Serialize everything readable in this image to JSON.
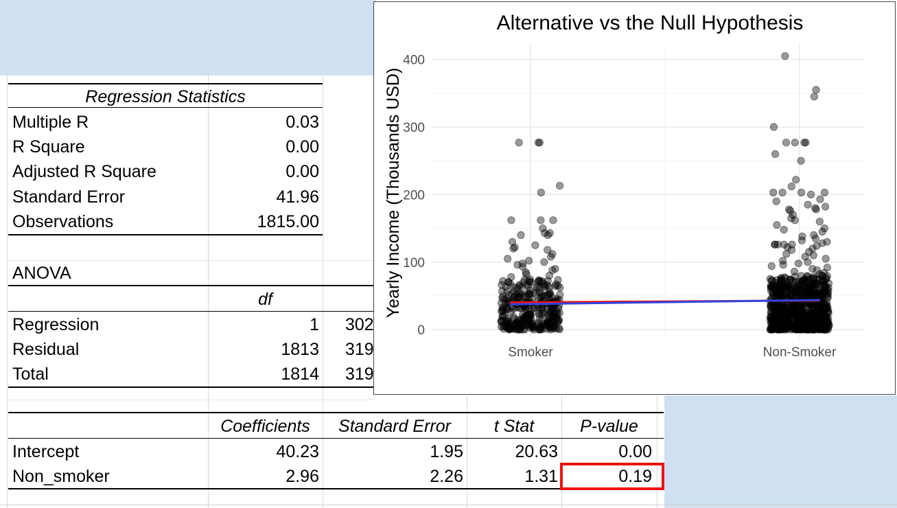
{
  "regression_stats": {
    "header": "Regression Statistics",
    "rows": [
      {
        "label": "Multiple R",
        "value": "0.03"
      },
      {
        "label": "R Square",
        "value": "0.00"
      },
      {
        "label": "Adjusted R Square",
        "value": "0.00"
      },
      {
        "label": "Standard Error",
        "value": "41.96"
      },
      {
        "label": "Observations",
        "value": "1815.00"
      }
    ]
  },
  "anova": {
    "title": "ANOVA",
    "df_header": "df",
    "rows": [
      {
        "label": "Regression",
        "df": "1",
        "ss_partial": "302"
      },
      {
        "label": "Residual",
        "df": "1813",
        "ss_partial": "319"
      },
      {
        "label": "Total",
        "df": "1814",
        "ss_partial": "319"
      }
    ]
  },
  "coefficients": {
    "headers": [
      "Coefficients",
      "Standard Error",
      "t Stat",
      "P-value"
    ],
    "rows": [
      {
        "label": "Intercept",
        "coef": "40.23",
        "se": "1.95",
        "t": "20.63",
        "p": "0.00"
      },
      {
        "label": "Non_smoker",
        "coef": "2.96",
        "se": "2.26",
        "t": "1.31",
        "p": "0.19"
      }
    ],
    "highlight_color": "#ee1111"
  },
  "chart_data": {
    "type": "scatter",
    "title": "Alternative vs the Null Hypothesis",
    "xlabel": "",
    "ylabel": "Yearly Income (Thousands USD)",
    "categories": [
      "Smoker",
      "Non-Smoker"
    ],
    "ylim": [
      -12,
      422
    ],
    "yticks": [
      0,
      100,
      200,
      300,
      400
    ],
    "grid": true,
    "point_color": "#000000",
    "point_alpha": 0.4,
    "jitter": true,
    "points": {
      "Smoker": {
        "count": 330,
        "outliers": [
          277,
          277,
          277,
          213,
          203,
          162,
          162,
          162,
          150,
          143,
          143,
          140,
          140,
          130,
          125,
          122,
          120,
          118,
          112,
          108,
          105,
          102,
          100,
          98,
          96,
          93,
          90,
          88,
          85,
          82,
          80,
          78
        ],
        "dense_max": 75
      },
      "Non-Smoker": {
        "count": 1485,
        "outliers": [
          405,
          355,
          345,
          300,
          277,
          277,
          277,
          277,
          260,
          250,
          222,
          212,
          203,
          203,
          203,
          203,
          200,
          193,
          190,
          185,
          182,
          180,
          178,
          178,
          176,
          170,
          165,
          162,
          160,
          155,
          150,
          148,
          145,
          140,
          138,
          135,
          132,
          130,
          128,
          126,
          126,
          126,
          126,
          126,
          124,
          122,
          120,
          118,
          115,
          112,
          110,
          108,
          105,
          102,
          100,
          98,
          96,
          94,
          92,
          90,
          88,
          86,
          84,
          82,
          80
        ],
        "dense_max": 80
      }
    },
    "lines": [
      {
        "name": "alternative",
        "color": "#ee1111",
        "y": [
          40.23,
          43.19
        ]
      },
      {
        "name": "null",
        "color": "#3344dd",
        "y": [
          37.5,
          43.9
        ]
      }
    ]
  }
}
